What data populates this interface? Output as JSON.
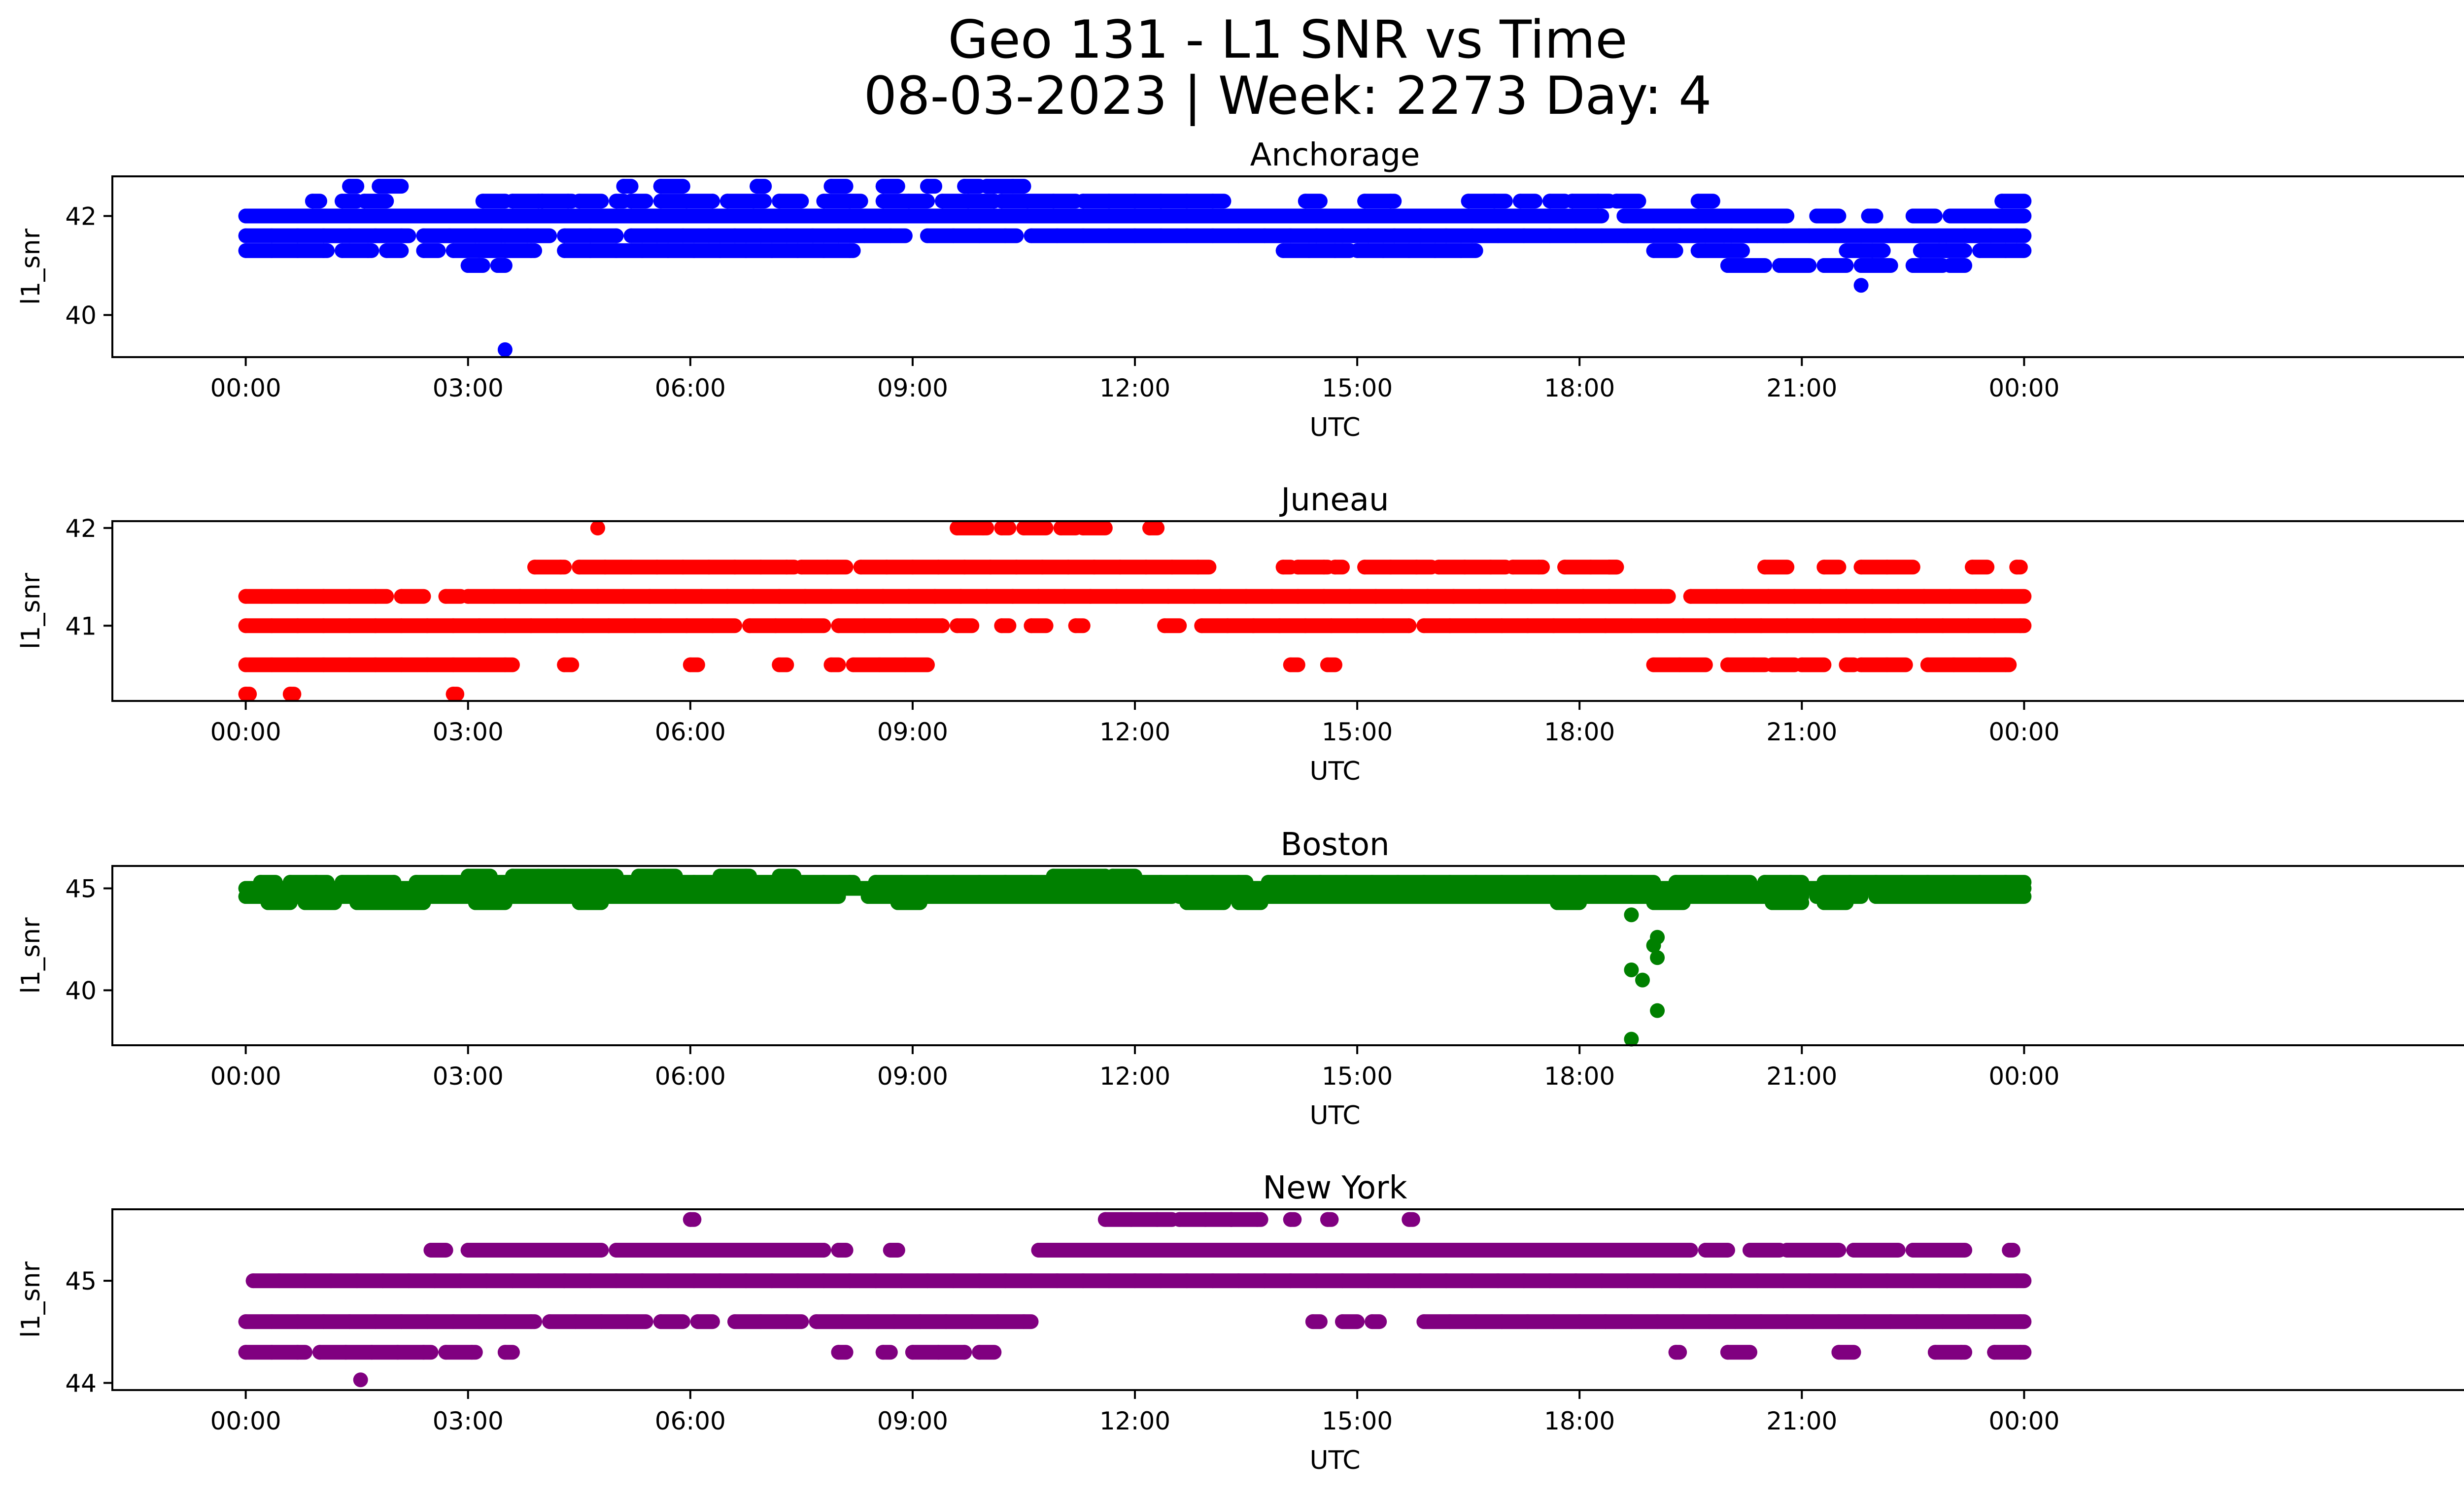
{
  "figure": {
    "title_line1": "Geo 131 - L1 SNR vs Time",
    "title_line2": "08-03-2023 | Week: 2273 Day: 4"
  },
  "chart_data": [
    {
      "type": "scatter",
      "title": "Anchorage",
      "xlabel": "UTC",
      "ylabel": "l1_snr",
      "color": "#0000ff",
      "x_unit": "hours UTC",
      "xlim": [
        -1.8,
        31.2
      ],
      "ylim": [
        39.15,
        42.8
      ],
      "xticks": [
        "00:00",
        "03:00",
        "06:00",
        "09:00",
        "12:00",
        "15:00",
        "18:00",
        "21:00",
        "00:00"
      ],
      "yticks": [
        40,
        42
      ],
      "bands": [
        {
          "y": 42.3,
          "segments": [
            [
              0.9,
              1.0
            ],
            [
              1.3,
              1.5
            ],
            [
              1.6,
              1.9
            ],
            [
              3.2,
              3.5
            ],
            [
              3.6,
              4.0
            ],
            [
              4.0,
              4.4
            ],
            [
              4.5,
              4.8
            ],
            [
              5.0,
              5.1
            ],
            [
              5.2,
              5.4
            ],
            [
              5.6,
              6.3
            ],
            [
              6.5,
              7.0
            ],
            [
              7.2,
              7.5
            ],
            [
              7.8,
              8.3
            ],
            [
              8.6,
              9.2
            ],
            [
              9.4,
              10.1
            ],
            [
              10.2,
              11.2
            ],
            [
              11.3,
              13.2
            ],
            [
              14.3,
              14.5
            ],
            [
              15.1,
              15.5
            ],
            [
              16.5,
              17.0
            ],
            [
              17.2,
              17.4
            ],
            [
              17.6,
              17.8
            ],
            [
              17.9,
              18.4
            ],
            [
              18.5,
              18.8
            ],
            [
              19.6,
              19.8
            ],
            [
              23.7,
              24.0
            ]
          ]
        },
        {
          "y": 42.6,
          "segments": [
            [
              1.4,
              1.5
            ],
            [
              1.8,
              2.1
            ],
            [
              5.1,
              5.2
            ],
            [
              5.6,
              5.9
            ],
            [
              6.9,
              7.0
            ],
            [
              7.9,
              8.1
            ],
            [
              8.6,
              8.8
            ],
            [
              9.2,
              9.3
            ],
            [
              9.7,
              9.9
            ],
            [
              10.0,
              10.5
            ]
          ]
        },
        {
          "y": 42.0,
          "segments": [
            [
              0.0,
              18.3
            ],
            [
              18.6,
              20.8
            ],
            [
              21.2,
              21.5
            ],
            [
              21.9,
              22.0
            ],
            [
              22.5,
              22.8
            ],
            [
              23.0,
              24.0
            ]
          ]
        },
        {
          "y": 41.6,
          "segments": [
            [
              0.0,
              2.2
            ],
            [
              2.4,
              4.1
            ],
            [
              4.3,
              5.0
            ],
            [
              5.2,
              8.9
            ],
            [
              9.2,
              10.4
            ],
            [
              10.6,
              24.0
            ]
          ]
        },
        {
          "y": 41.3,
          "segments": [
            [
              0.0,
              1.1
            ],
            [
              1.3,
              1.7
            ],
            [
              1.9,
              2.1
            ],
            [
              2.4,
              2.6
            ],
            [
              2.8,
              3.9
            ],
            [
              4.3,
              8.2
            ],
            [
              14.0,
              14.9
            ],
            [
              15.0,
              16.6
            ],
            [
              19.0,
              19.3
            ],
            [
              19.6,
              20.2
            ],
            [
              21.6,
              22.1
            ],
            [
              22.6,
              23.2
            ],
            [
              23.4,
              24.0
            ]
          ]
        },
        {
          "y": 41.0,
          "segments": [
            [
              3.0,
              3.2
            ],
            [
              3.4,
              3.5
            ],
            [
              20.0,
              20.5
            ],
            [
              20.7,
              21.1
            ],
            [
              21.3,
              21.6
            ],
            [
              21.8,
              22.2
            ],
            [
              22.5,
              22.9
            ],
            [
              23.0,
              23.2
            ]
          ]
        }
      ],
      "points": [
        {
          "x": 3.5,
          "y": 39.3
        },
        {
          "x": 21.8,
          "y": 40.6
        }
      ]
    },
    {
      "type": "scatter",
      "title": "Juneau",
      "xlabel": "UTC",
      "ylabel": "l1_snr",
      "color": "#ff0000",
      "x_unit": "hours UTC",
      "xlim": [
        -1.8,
        31.2
      ],
      "ylim": [
        40.23,
        42.07
      ],
      "xticks": [
        "00:00",
        "03:00",
        "06:00",
        "09:00",
        "12:00",
        "15:00",
        "18:00",
        "21:00",
        "00:00"
      ],
      "yticks": [
        41,
        42
      ],
      "bands": [
        {
          "y": 42.0,
          "segments": [
            [
              4.75,
              4.75
            ],
            [
              9.6,
              10.0
            ],
            [
              10.2,
              10.3
            ],
            [
              10.5,
              10.8
            ],
            [
              11.0,
              11.2
            ],
            [
              11.3,
              11.6
            ],
            [
              12.2,
              12.3
            ]
          ]
        },
        {
          "y": 41.6,
          "segments": [
            [
              3.9,
              4.3
            ],
            [
              4.5,
              7.4
            ],
            [
              7.5,
              8.1
            ],
            [
              8.3,
              13.0
            ],
            [
              14.0,
              14.1
            ],
            [
              14.2,
              14.6
            ],
            [
              14.7,
              14.8
            ],
            [
              15.1,
              16.0
            ],
            [
              16.1,
              17.0
            ],
            [
              17.1,
              17.5
            ],
            [
              17.8,
              18.5
            ],
            [
              18.4,
              18.5
            ],
            [
              20.5,
              20.8
            ],
            [
              21.3,
              21.5
            ],
            [
              21.8,
              22.5
            ],
            [
              23.3,
              23.5
            ],
            [
              23.9,
              23.95
            ]
          ]
        },
        {
          "y": 41.3,
          "segments": [
            [
              0.0,
              1.9
            ],
            [
              2.1,
              2.4
            ],
            [
              2.7,
              2.9
            ],
            [
              3.0,
              19.2
            ],
            [
              19.5,
              24.0
            ]
          ]
        },
        {
          "y": 41.0,
          "segments": [
            [
              0.0,
              6.6
            ],
            [
              6.8,
              7.8
            ],
            [
              8.0,
              9.4
            ],
            [
              9.6,
              9.8
            ],
            [
              10.2,
              10.3
            ],
            [
              10.6,
              10.8
            ],
            [
              11.2,
              11.3
            ],
            [
              12.4,
              12.6
            ],
            [
              12.9,
              15.7
            ],
            [
              15.9,
              24.0
            ]
          ]
        },
        {
          "y": 40.6,
          "segments": [
            [
              0.0,
              3.6
            ],
            [
              4.3,
              4.4
            ],
            [
              6.0,
              6.1
            ],
            [
              7.2,
              7.3
            ],
            [
              7.9,
              8.0
            ],
            [
              8.2,
              9.2
            ],
            [
              14.1,
              14.2
            ],
            [
              14.6,
              14.7
            ],
            [
              19.0,
              19.7
            ],
            [
              20.0,
              20.5
            ],
            [
              20.6,
              20.9
            ],
            [
              21.0,
              21.3
            ],
            [
              21.6,
              21.7
            ],
            [
              21.8,
              22.4
            ],
            [
              22.7,
              23.8
            ]
          ]
        },
        {
          "y": 40.3,
          "segments": [
            [
              0.0,
              0.05
            ],
            [
              0.6,
              0.65
            ],
            [
              2.8,
              2.85
            ]
          ]
        }
      ],
      "points": []
    },
    {
      "type": "scatter",
      "title": "Boston",
      "xlabel": "UTC",
      "ylabel": "l1_snr",
      "color": "#008000",
      "x_unit": "hours UTC",
      "xlim": [
        -1.8,
        31.2
      ],
      "ylim": [
        37.3,
        46.1
      ],
      "xticks": [
        "00:00",
        "03:00",
        "06:00",
        "09:00",
        "12:00",
        "15:00",
        "18:00",
        "21:00",
        "00:00"
      ],
      "yticks": [
        40,
        45
      ],
      "bands": [
        {
          "y": 45.6,
          "segments": [
            [
              3.0,
              3.3
            ],
            [
              3.6,
              5.0
            ],
            [
              5.3,
              5.8
            ],
            [
              6.4,
              6.8
            ],
            [
              7.2,
              7.4
            ],
            [
              10.9,
              11.6
            ],
            [
              11.7,
              12.0
            ]
          ]
        },
        {
          "y": 45.3,
          "segments": [
            [
              0.2,
              0.4
            ],
            [
              0.6,
              1.1
            ],
            [
              1.3,
              2.0
            ],
            [
              2.3,
              3.5
            ],
            [
              3.6,
              8.2
            ],
            [
              8.5,
              11.8
            ],
            [
              12.0,
              13.5
            ],
            [
              13.8,
              19.0
            ],
            [
              19.3,
              20.3
            ],
            [
              20.5,
              21.0
            ],
            [
              21.3,
              24.0
            ]
          ]
        },
        {
          "y": 45.0,
          "segments": [
            [
              0.0,
              24.0
            ]
          ]
        },
        {
          "y": 44.6,
          "segments": [
            [
              0.0,
              8.0
            ],
            [
              8.4,
              12.5
            ],
            [
              12.6,
              20.6
            ],
            [
              20.8,
              21.0
            ],
            [
              21.2,
              21.8
            ],
            [
              22.0,
              24.0
            ]
          ]
        },
        {
          "y": 44.3,
          "segments": [
            [
              0.3,
              0.6
            ],
            [
              0.8,
              1.2
            ],
            [
              1.5,
              2.4
            ],
            [
              3.1,
              3.5
            ],
            [
              4.5,
              4.8
            ],
            [
              8.8,
              9.1
            ],
            [
              12.7,
              13.2
            ],
            [
              13.4,
              13.7
            ],
            [
              17.7,
              18.0
            ],
            [
              19.0,
              19.4
            ],
            [
              20.6,
              21.0
            ],
            [
              21.3,
              21.6
            ]
          ]
        }
      ],
      "points": [
        {
          "x": 18.7,
          "y": 43.7
        },
        {
          "x": 18.7,
          "y": 41.0
        },
        {
          "x": 18.85,
          "y": 40.5
        },
        {
          "x": 19.0,
          "y": 42.2
        },
        {
          "x": 19.05,
          "y": 42.6
        },
        {
          "x": 19.05,
          "y": 41.6
        },
        {
          "x": 19.05,
          "y": 39.0
        },
        {
          "x": 18.7,
          "y": 37.6
        }
      ]
    },
    {
      "type": "scatter",
      "title": "New York",
      "xlabel": "UTC",
      "ylabel": "l1_snr",
      "color": "#800080",
      "x_unit": "hours UTC",
      "xlim": [
        -1.8,
        31.2
      ],
      "ylim": [
        43.93,
        45.7
      ],
      "xticks": [
        "00:00",
        "03:00",
        "06:00",
        "09:00",
        "12:00",
        "15:00",
        "18:00",
        "21:00",
        "00:00"
      ],
      "yticks": [
        44,
        45
      ],
      "bands": [
        {
          "y": 45.6,
          "segments": [
            [
              6.0,
              6.05
            ],
            [
              11.6,
              12.5
            ],
            [
              12.6,
              13.3
            ],
            [
              13.3,
              13.7
            ],
            [
              14.1,
              14.15
            ],
            [
              14.6,
              14.65
            ],
            [
              15.7,
              15.75
            ]
          ]
        },
        {
          "y": 45.3,
          "segments": [
            [
              2.5,
              2.7
            ],
            [
              3.0,
              4.8
            ],
            [
              5.0,
              7.8
            ],
            [
              8.0,
              8.1
            ],
            [
              8.7,
              8.8
            ],
            [
              10.7,
              19.5
            ],
            [
              19.7,
              20.0
            ],
            [
              20.3,
              20.7
            ],
            [
              20.8,
              21.5
            ],
            [
              21.7,
              22.3
            ],
            [
              22.5,
              23.2
            ],
            [
              23.8,
              23.85
            ]
          ]
        },
        {
          "y": 45.0,
          "segments": [
            [
              0.1,
              24.0
            ]
          ]
        },
        {
          "y": 44.6,
          "segments": [
            [
              0.0,
              3.9
            ],
            [
              4.1,
              5.4
            ],
            [
              5.6,
              5.9
            ],
            [
              6.1,
              6.3
            ],
            [
              6.6,
              7.5
            ],
            [
              7.7,
              10.6
            ],
            [
              14.4,
              14.5
            ],
            [
              14.8,
              15.0
            ],
            [
              15.2,
              15.3
            ],
            [
              15.9,
              24.0
            ]
          ]
        },
        {
          "y": 44.3,
          "segments": [
            [
              0.0,
              0.8
            ],
            [
              1.0,
              2.5
            ],
            [
              2.7,
              3.1
            ],
            [
              3.5,
              3.6
            ],
            [
              8.0,
              8.1
            ],
            [
              8.6,
              8.7
            ],
            [
              9.0,
              9.7
            ],
            [
              9.9,
              10.1
            ],
            [
              19.3,
              19.35
            ],
            [
              20.0,
              20.3
            ],
            [
              21.5,
              21.7
            ],
            [
              22.8,
              23.2
            ],
            [
              23.6,
              24.0
            ]
          ]
        }
      ],
      "points": [
        {
          "x": 1.55,
          "y": 44.03
        }
      ]
    }
  ]
}
